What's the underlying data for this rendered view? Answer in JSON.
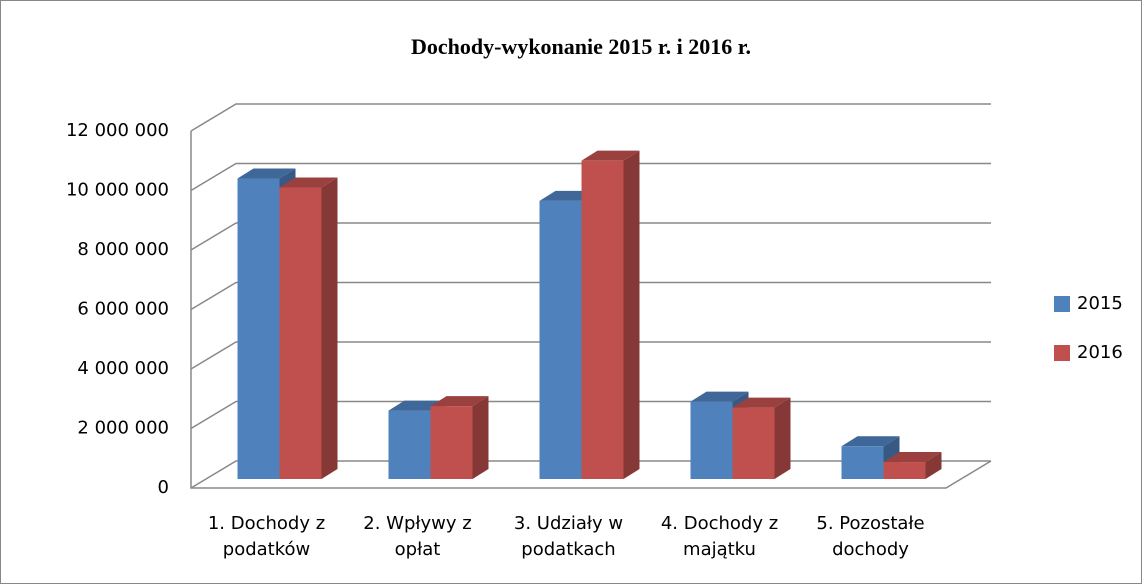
{
  "chart_data": {
    "type": "bar3d",
    "title": "Dochody-wykonanie 2015 r. i 2016  r.",
    "categories": [
      "1. Dochody z podatków",
      "2. Wpływy z opłat",
      "3. Udziały w podatkach",
      "4. Dochody z majątku",
      "5. Pozostałe dochody"
    ],
    "series": [
      {
        "name": "2015",
        "color": "#4f81bd",
        "values": [
          10100000,
          2300000,
          9350000,
          2600000,
          1100000
        ]
      },
      {
        "name": "2016",
        "color": "#c0504d",
        "values": [
          9800000,
          2450000,
          10700000,
          2400000,
          570000
        ]
      }
    ],
    "ylim": [
      0,
      12000000
    ],
    "yticks": [
      0,
      {
        "value": 2000000,
        "label": "2 000 000"
      },
      {
        "value": 4000000,
        "label": "4 000 000"
      },
      {
        "value": 6000000,
        "label": "6 000 000"
      },
      {
        "value": 8000000,
        "label": "8 000 000"
      },
      {
        "value": 10000000,
        "label": "10 000 000"
      },
      {
        "value": 12000000,
        "label": "12 000 000"
      }
    ],
    "grid": true,
    "legend": "right"
  }
}
